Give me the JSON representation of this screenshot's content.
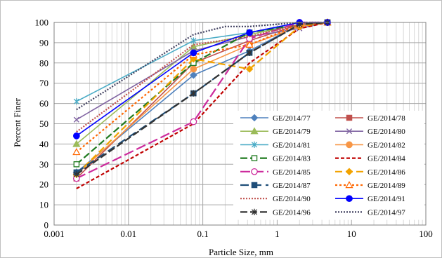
{
  "chart_data": {
    "type": "line",
    "xlabel": "Particle Size, mm",
    "ylabel": "Percent Finer",
    "x_scale": "log",
    "xlim": [
      0.001,
      100
    ],
    "ylim": [
      0,
      100
    ],
    "x_ticks": [
      "0.001",
      "0.01",
      "0.1",
      "1",
      "10",
      "100"
    ],
    "y_ticks": [
      "0",
      "10",
      "20",
      "30",
      "40",
      "50",
      "60",
      "70",
      "80",
      "90",
      "100"
    ],
    "grid": true,
    "legend_position": "right",
    "series": [
      {
        "name": "GE/2014/77",
        "color": "#4f81bd",
        "dash": "",
        "marker": "diamond",
        "marker_fill": "#4f81bd",
        "x": [
          0.002,
          0.075,
          0.425,
          2,
          4.75
        ],
        "y": [
          26,
          74,
          86,
          99,
          100
        ]
      },
      {
        "name": "GE/2014/78",
        "color": "#c0504d",
        "dash": "",
        "marker": "square",
        "marker_fill": "#c0504d",
        "x": [
          0.002,
          0.075,
          0.425,
          2,
          4.75
        ],
        "y": [
          23,
          80,
          91,
          99,
          100
        ]
      },
      {
        "name": "GE/2014/79",
        "color": "#9bbb59",
        "dash": "",
        "marker": "triangle",
        "marker_fill": "#9bbb59",
        "x": [
          0.002,
          0.075,
          0.425,
          2,
          4.75
        ],
        "y": [
          40,
          88,
          94,
          99,
          100
        ]
      },
      {
        "name": "GE/2014/80",
        "color": "#8064a2",
        "dash": "",
        "marker": "x",
        "marker_fill": "#8064a2",
        "x": [
          0.002,
          0.075,
          0.425,
          2,
          4.75
        ],
        "y": [
          52,
          86,
          93,
          97,
          100
        ]
      },
      {
        "name": "GE/2014/81",
        "color": "#4bacc6",
        "dash": "",
        "marker": "star",
        "marker_fill": "#4bacc6",
        "x": [
          0.002,
          0.075,
          0.425,
          2,
          4.75
        ],
        "y": [
          61,
          91,
          95,
          99,
          100
        ]
      },
      {
        "name": "GE/2014/82",
        "color": "#f79646",
        "dash": "",
        "marker": "circle",
        "marker_fill": "#f79646",
        "x": [
          0.002,
          0.075,
          0.425,
          2,
          4.75
        ],
        "y": [
          25,
          77,
          89,
          98,
          100
        ]
      },
      {
        "name": "GE/2014/83",
        "color": "#1e7a1e",
        "dash": "10,4",
        "marker": "square-open",
        "marker_fill": "#ffffff",
        "x": [
          0.002,
          0.075,
          0.425,
          2,
          4.75
        ],
        "y": [
          30,
          80,
          95,
          99,
          100
        ]
      },
      {
        "name": "GE/2014/84",
        "color": "#c00000",
        "dash": "5,3",
        "marker": "none",
        "marker_fill": "#c00000",
        "x": [
          0.002,
          0.075,
          0.425,
          2,
          4.75
        ],
        "y": [
          18,
          50,
          80,
          97,
          100
        ]
      },
      {
        "name": "GE/2014/85",
        "color": "#cc2a9c",
        "dash": "14,5",
        "marker": "circle-open",
        "marker_fill": "#ffffff",
        "x": [
          0.002,
          0.075,
          0.425,
          2,
          4.75
        ],
        "y": [
          23,
          51,
          92,
          100,
          100
        ]
      },
      {
        "name": "GE/2014/86",
        "color": "#f2a300",
        "dash": "10,5",
        "marker": "diamond",
        "marker_fill": "#f2a300",
        "x": [
          0.002,
          0.075,
          0.425,
          2,
          4.75
        ],
        "y": [
          25,
          82,
          77,
          98,
          100
        ]
      },
      {
        "name": "GE/2014/87",
        "color": "#1f4e79",
        "dash": "12,6",
        "marker": "square",
        "marker_fill": "#1f4e79",
        "x": [
          0.002,
          0.075,
          0.425,
          2,
          4.75
        ],
        "y": [
          26,
          65,
          85,
          99,
          100
        ]
      },
      {
        "name": "GE/2014/89",
        "color": "#ff6600",
        "dash": "3,3",
        "marker": "triangle-open",
        "marker_fill": "#ffffff",
        "x": [
          0.002,
          0.075,
          0.425,
          2,
          4.75
        ],
        "y": [
          36,
          84,
          89,
          99,
          100
        ]
      },
      {
        "name": "GE/2014/90",
        "color": "#c0504d",
        "dash": "2,2",
        "marker": "none",
        "marker_fill": "#c0504d",
        "x": [
          0.002,
          0.075,
          0.425,
          2,
          4.75
        ],
        "y": [
          46,
          89,
          93,
          99,
          100
        ]
      },
      {
        "name": "GE/2014/91",
        "color": "#0000ff",
        "dash": "",
        "marker": "circle",
        "marker_fill": "#0000ff",
        "x": [
          0.002,
          0.075,
          0.425,
          2,
          4.75
        ],
        "y": [
          44,
          85,
          95,
          100,
          100
        ]
      },
      {
        "name": "GE/2014/96",
        "color": "#333333",
        "dash": "10,4",
        "marker": "star",
        "marker_fill": "#333333",
        "x": [
          0.002,
          0.075,
          0.425,
          2,
          4.75
        ],
        "y": [
          25,
          65,
          85,
          99,
          100
        ]
      },
      {
        "name": "GE/2014/97",
        "color": "#404060",
        "dash": "2,2",
        "marker": "none",
        "marker_fill": "#404060",
        "x": [
          0.002,
          0.075,
          0.2,
          0.425,
          2,
          4.75
        ],
        "y": [
          57,
          94,
          98,
          98,
          100,
          100
        ]
      }
    ]
  }
}
